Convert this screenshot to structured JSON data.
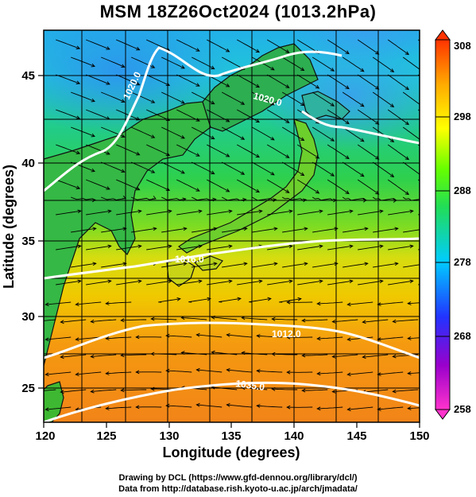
{
  "title": "MSM 18Z26Oct2024 (1013.2hPa)",
  "xlabel": "Longitude (degrees)",
  "ylabel": "Latitude  (degrees)",
  "x_ticks": [
    "120",
    "125",
    "130",
    "135",
    "140",
    "145",
    "150"
  ],
  "y_ticks": [
    "25",
    "30",
    "35",
    "40",
    "45"
  ],
  "colorbar": {
    "ticks": [
      "258",
      "268",
      "278",
      "288",
      "298",
      "308"
    ],
    "range": [
      258,
      308
    ],
    "colors": [
      "#ff33cc",
      "#9900cc",
      "#2233ff",
      "#00ccff",
      "#22dd55",
      "#66ff00",
      "#ffff00",
      "#ffaa00",
      "#ff3300"
    ]
  },
  "contour_labels": [
    "1020.0",
    "1020.0",
    "1016.0",
    "1012.0",
    "1035.0"
  ],
  "credits": [
    "Drawing by DCL (https://www.gfd-dennou.org/library/dcl/)",
    "Data from http://database.rish.kyoto-u.ac.jp/arch/jmadata/"
  ],
  "chart_data": {
    "type": "heatmap",
    "title": "MSM 18Z26Oct2024 (1013.2hPa)",
    "xlabel": "Longitude (degrees)",
    "ylabel": "Latitude  (degrees)",
    "xlim": [
      120,
      150
    ],
    "ylim": [
      22.4,
      47.6
    ],
    "colorbar_range": [
      258,
      308
    ],
    "temperature_field_K": [
      {
        "lat": 46,
        "lon": 125,
        "value": 281
      },
      {
        "lat": 46,
        "lon": 145,
        "value": 283
      },
      {
        "lat": 42,
        "lon": 122,
        "value": 285
      },
      {
        "lat": 42,
        "lon": 140,
        "value": 285
      },
      {
        "lat": 40,
        "lon": 148,
        "value": 287
      },
      {
        "lat": 38,
        "lon": 130,
        "value": 289
      },
      {
        "lat": 35,
        "lon": 135,
        "value": 292
      },
      {
        "lat": 33,
        "lon": 145,
        "value": 294
      },
      {
        "lat": 30,
        "lon": 130,
        "value": 298
      },
      {
        "lat": 28,
        "lon": 140,
        "value": 300
      },
      {
        "lat": 25,
        "lon": 135,
        "value": 302
      },
      {
        "lat": 24,
        "lon": 148,
        "value": 303
      }
    ],
    "pressure_contours_hPa": [
      1020.0,
      1016.0,
      1012.0,
      1035.0
    ],
    "grid": true
  }
}
